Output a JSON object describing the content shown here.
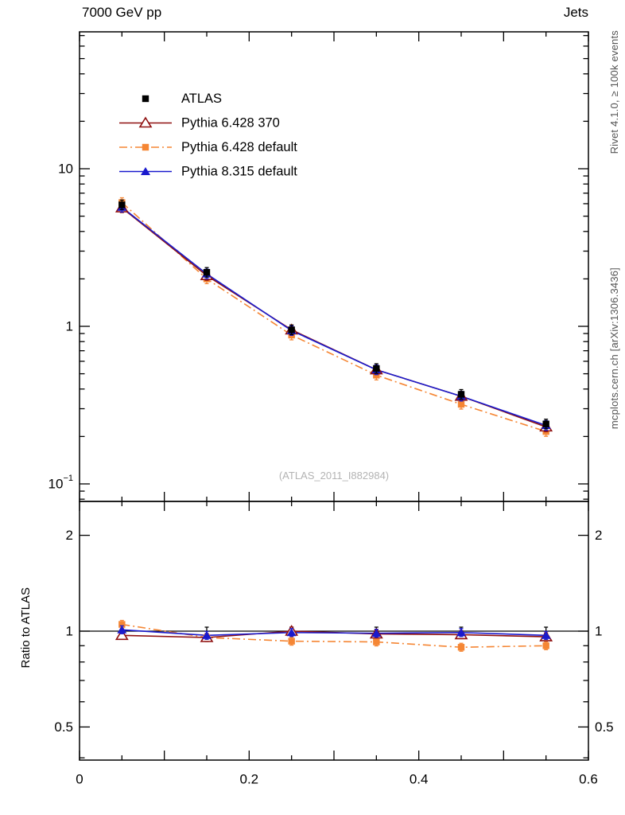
{
  "header": {
    "title_left": "7000 GeV pp",
    "title_right": "Jets"
  },
  "side_labels": {
    "rivet": "Rivet 4.1.0, ≥ 100k events",
    "mcplots": "mcplots.cern.ch [arXiv:1306.3436]"
  },
  "watermark": "(ATLAS_2011_I882984)",
  "chart_data": {
    "type": "line",
    "x": [
      0.05,
      0.15,
      0.25,
      0.35,
      0.45,
      0.55
    ],
    "xlim": [
      0,
      0.6
    ],
    "xticks": [
      {
        "value": 0,
        "label": "0"
      },
      {
        "value": 0.2,
        "label": "0.2"
      },
      {
        "value": 0.4,
        "label": "0.4"
      },
      {
        "value": 0.6,
        "label": "0.6"
      }
    ],
    "main": {
      "yscale": "log",
      "ylim": [
        0.078,
        74
      ],
      "yticks": [
        {
          "value": 10,
          "label": "10"
        },
        {
          "value": 1,
          "label": "1"
        },
        {
          "value": 0.1,
          "label": "10",
          "sup": "−1"
        }
      ],
      "series": [
        {
          "name": "ATLAS",
          "marker": "square-filled",
          "color": "#000000",
          "line": "none",
          "values": [
            5.9,
            2.2,
            0.95,
            0.54,
            0.37,
            0.24
          ]
        },
        {
          "name": "Pythia 6.428 370",
          "marker": "triangle-open",
          "color": "#8f1010",
          "line": "solid",
          "values": [
            5.65,
            2.1,
            0.95,
            0.53,
            0.36,
            0.23
          ]
        },
        {
          "name": "Pythia 6.428 default",
          "marker": "square-filled",
          "color": "#f58634",
          "line": "dashdot",
          "values": [
            6.1,
            2.0,
            0.88,
            0.49,
            0.32,
            0.215
          ]
        },
        {
          "name": "Pythia 8.315 default",
          "marker": "triangle-filled",
          "color": "#1a1acd",
          "line": "solid",
          "values": [
            5.7,
            2.15,
            0.94,
            0.53,
            0.36,
            0.235
          ]
        }
      ]
    },
    "ratio": {
      "ylabel": "Ratio to ATLAS",
      "yscale": "log",
      "ylim": [
        0.39,
        2.56
      ],
      "yticks": [
        {
          "value": 2,
          "label": "2"
        },
        {
          "value": 1,
          "label": "1"
        },
        {
          "value": 0.5,
          "label": "0.5"
        }
      ],
      "series": [
        {
          "name": "Pythia 6.428 370",
          "values": [
            0.97,
            0.955,
            1.0,
            0.98,
            0.975,
            0.96
          ]
        },
        {
          "name": "Pythia 6.428 default",
          "values": [
            1.05,
            0.955,
            0.93,
            0.925,
            0.89,
            0.9
          ]
        },
        {
          "name": "Pythia 8.315 default",
          "values": [
            1.01,
            0.97,
            0.99,
            0.985,
            0.99,
            0.97
          ]
        }
      ]
    }
  }
}
